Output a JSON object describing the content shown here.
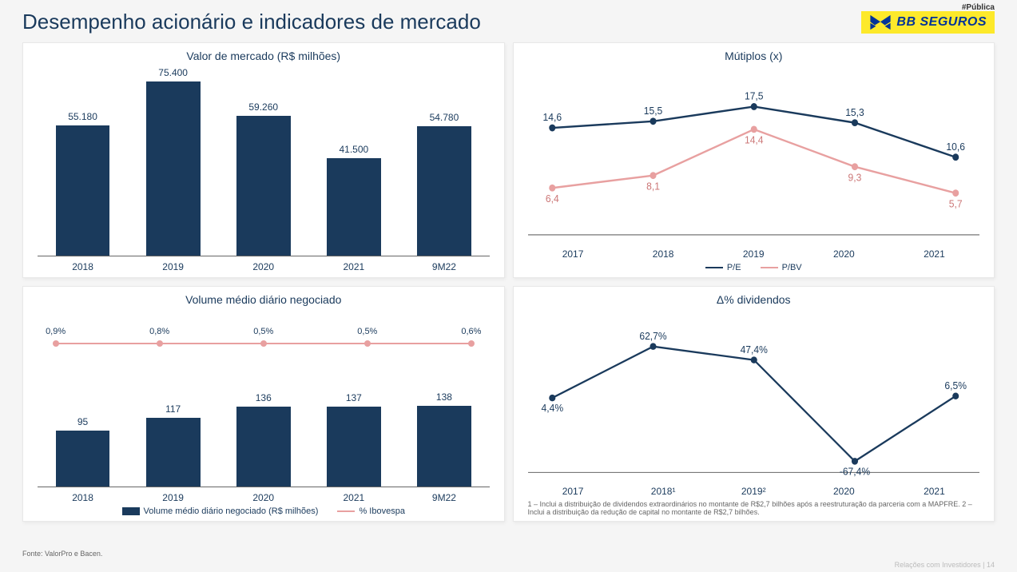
{
  "meta": {
    "tag": "#Pública",
    "page_footer": "Relações com Investidores | 14"
  },
  "header": {
    "title": "Desempenho acionário e indicadores de mercado",
    "logo_text": "BB SEGUROS",
    "logo_bg": "#fde92a",
    "logo_color": "#003399"
  },
  "colors": {
    "navy": "#1a3a5c",
    "bar": "#1a3a5c",
    "pink": "#e8a0a0",
    "panel_bg": "#ffffff"
  },
  "chart1": {
    "title": "Valor de mercado (R$ milhões)",
    "type": "bar",
    "categories": [
      "2018",
      "2019",
      "2020",
      "2021",
      "9M22"
    ],
    "values": [
      55180,
      75400,
      59260,
      41500,
      54780
    ],
    "labels": [
      "55.180",
      "75.400",
      "59.260",
      "41.500",
      "54.780"
    ],
    "bar_color": "#1a3a5c",
    "ymax": 80000
  },
  "chart2": {
    "title": "Mútiplos (x)",
    "type": "line",
    "categories": [
      "2017",
      "2018",
      "2019",
      "2020",
      "2021"
    ],
    "series": [
      {
        "name": "P/E",
        "color": "#1a3a5c",
        "values": [
          14.6,
          15.5,
          17.5,
          15.3,
          10.6
        ],
        "labels": [
          "14,6",
          "15,5",
          "17,5",
          "15,3",
          "10,6"
        ]
      },
      {
        "name": "P/BV",
        "color": "#e8a0a0",
        "values": [
          6.4,
          8.1,
          14.4,
          9.3,
          5.7
        ],
        "labels": [
          "6,4",
          "8,1",
          "14,4",
          "9,3",
          "5,7"
        ]
      }
    ],
    "ymin": 0,
    "ymax": 20,
    "legend": [
      "P/E",
      "P/BV"
    ]
  },
  "chart3": {
    "title": "Volume médio diário negociado",
    "type": "bar+line",
    "categories": [
      "2018",
      "2019",
      "2020",
      "2021",
      "9M22"
    ],
    "bars": {
      "values": [
        95,
        117,
        136,
        137,
        138
      ],
      "labels": [
        "95",
        "117",
        "136",
        "137",
        "138"
      ],
      "color": "#1a3a5c",
      "ymax": 300
    },
    "line": {
      "values": [
        0.9,
        0.8,
        0.5,
        0.5,
        0.6
      ],
      "labels": [
        "0,9%",
        "0,8%",
        "0,5%",
        "0,5%",
        "0,6%"
      ],
      "color": "#e8a0a0",
      "y_pos": 0.12
    },
    "legend_bar": "Volume médio diário negociado (R$ milhões)",
    "legend_line": "% Ibovespa",
    "source": "Fonte: ValorPro e Bacen."
  },
  "chart4": {
    "title": "Δ% dividendos",
    "type": "line",
    "categories": [
      "2017",
      "2018¹",
      "2019²",
      "2020",
      "2021"
    ],
    "series": [
      {
        "name": "div",
        "color": "#1a3a5c",
        "values": [
          4.4,
          62.7,
          47.4,
          -67.4,
          6.5
        ],
        "labels": [
          "4,4%",
          "62,7%",
          "47,4%",
          "-67,4%",
          "6,5%"
        ]
      }
    ],
    "ymin": -80,
    "ymax": 80,
    "footnote": "1 – Inclui a distribuição de dividendos extraordinários no montante de R$2,7 bilhões após a reestruturação da parceria com a MAPFRE. 2 – Inclui a distribuição da redução de capital no montante de R$2,7 bilhões."
  }
}
